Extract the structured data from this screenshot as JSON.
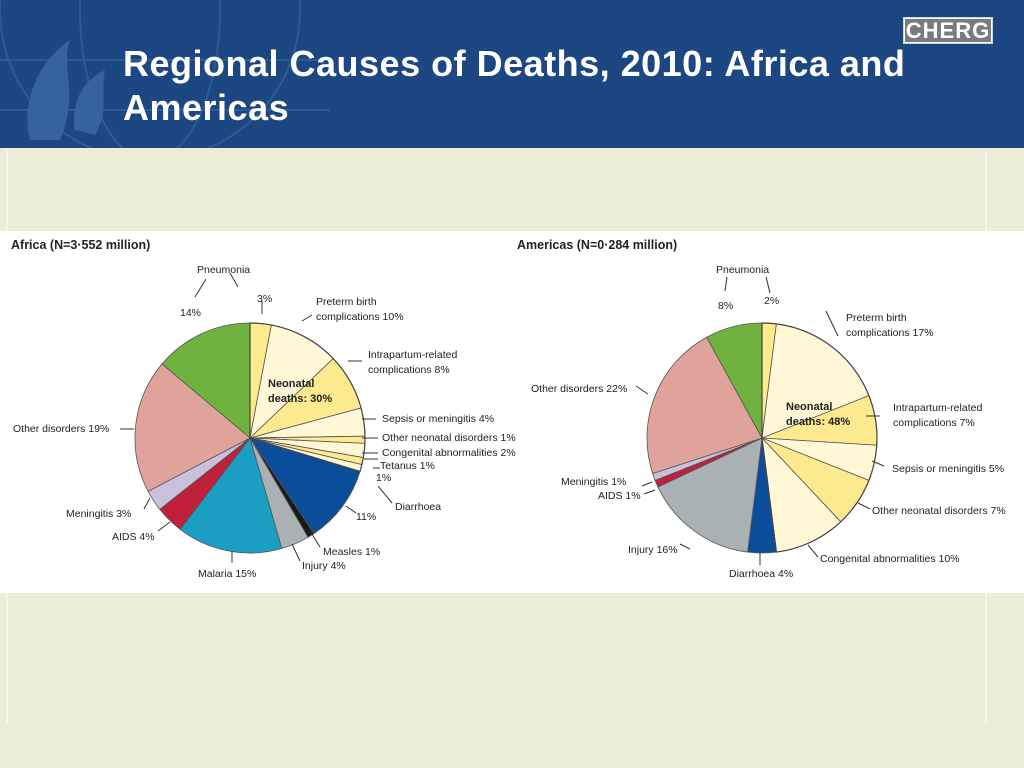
{
  "slide": {
    "title": "Regional Causes of Deaths, 2010: Africa and Americas",
    "logo_text": "CHERG"
  },
  "colors": {
    "header_bg": "#1d4783",
    "pneumonia_green": "#6fb23f",
    "neonatal_light": "#fff7d6",
    "neonatal_yellow": "#fde98e",
    "other_pink": "#e0a39c",
    "meningitis_lavender": "#cbc0dc",
    "aids_red": "#c0203a",
    "malaria_blue": "#1a9ec4",
    "injury_grey": "#aab1b5",
    "diarrhoea_blue": "#0a4d9a"
  },
  "chart_data": [
    {
      "type": "pie",
      "title": "Africa (N=3·552 million)",
      "center_label": [
        "Neonatal",
        "deaths: 30%"
      ],
      "slices": [
        {
          "label": "Pneumonia 3%",
          "value": 3,
          "color": "#fde98e",
          "group": "neonatal"
        },
        {
          "label": "Preterm birth complications 10%",
          "value": 10,
          "color": "#fff7d6",
          "group": "neonatal"
        },
        {
          "label": "Intrapartum-related complications 8%",
          "value": 8,
          "color": "#fde98e",
          "group": "neonatal"
        },
        {
          "label": "Sepsis or meningitis 4%",
          "value": 4,
          "color": "#fff7d6",
          "group": "neonatal"
        },
        {
          "label": "Other neonatal disorders 1%",
          "value": 1,
          "color": "#fde98e",
          "group": "neonatal"
        },
        {
          "label": "Congenital abnormalities 2%",
          "value": 2,
          "color": "#fff7d6",
          "group": "neonatal"
        },
        {
          "label": "Tetanus 1%",
          "value": 1,
          "color": "#fde98e",
          "group": "neonatal"
        },
        {
          "label": "1%",
          "value": 1,
          "color": "#fff7d6",
          "group": "neonatal"
        },
        {
          "label": "Diarrhoea 11%",
          "value": 11,
          "color": "#0a4d9a"
        },
        {
          "label": "Measles 1%",
          "value": 1,
          "color": "#1a1a1a"
        },
        {
          "label": "Injury 4%",
          "value": 4,
          "color": "#aab1b5"
        },
        {
          "label": "Malaria 15%",
          "value": 15,
          "color": "#1a9ec4"
        },
        {
          "label": "AIDS 4%",
          "value": 4,
          "color": "#c0203a"
        },
        {
          "label": "Meningitis 3%",
          "value": 3,
          "color": "#cbc0dc"
        },
        {
          "label": "Other disorders 19%",
          "value": 19,
          "color": "#e0a39c"
        },
        {
          "label": "Pneumonia 14%",
          "value": 14,
          "color": "#6fb23f"
        }
      ],
      "annotation_lines": [
        "Pneumonia",
        "3%",
        "14%",
        "Preterm birth",
        "complications 10%",
        "Intrapartum-related",
        "complications 8%",
        "Sepsis or meningitis 4%",
        "Other neonatal disorders 1%",
        "Congenital abnormalities 2%",
        "Tetanus 1%",
        "1%",
        "Diarrhoea",
        "11%",
        "Measles 1%",
        "Injury 4%",
        "Malaria 15%",
        "AIDS 4%",
        "Meningitis 3%",
        "Other disorders 19%"
      ]
    },
    {
      "type": "pie",
      "title": "Americas (N=0·284 million)",
      "center_label": [
        "Neonatal",
        "deaths: 48%"
      ],
      "slices": [
        {
          "label": "Pneumonia 2%",
          "value": 2,
          "color": "#fde98e",
          "group": "neonatal"
        },
        {
          "label": "Preterm birth complications 17%",
          "value": 17,
          "color": "#fff7d6",
          "group": "neonatal"
        },
        {
          "label": "Intrapartum-related complications 7%",
          "value": 7,
          "color": "#fde98e",
          "group": "neonatal"
        },
        {
          "label": "Sepsis or meningitis 5%",
          "value": 5,
          "color": "#fff7d6",
          "group": "neonatal"
        },
        {
          "label": "Other neonatal disorders 7%",
          "value": 7,
          "color": "#fde98e",
          "group": "neonatal"
        },
        {
          "label": "Congenital abnormalities 10%",
          "value": 10,
          "color": "#fff7d6",
          "group": "neonatal"
        },
        {
          "label": "Diarrhoea 4%",
          "value": 4,
          "color": "#0a4d9a"
        },
        {
          "label": "Injury 16%",
          "value": 16,
          "color": "#aab1b5"
        },
        {
          "label": "AIDS 1%",
          "value": 1,
          "color": "#c0203a"
        },
        {
          "label": "Meningitis 1%",
          "value": 1,
          "color": "#cbc0dc"
        },
        {
          "label": "Other disorders 22%",
          "value": 22,
          "color": "#e0a39c"
        },
        {
          "label": "Pneumonia 8%",
          "value": 8,
          "color": "#6fb23f"
        }
      ],
      "annotation_lines": [
        "Pneumonia",
        "8%",
        "2%",
        "Preterm birth",
        "complications 17%",
        "Intrapartum-related",
        "complications 7%",
        "Sepsis or meningitis 5%",
        "Other neonatal disorders 7%",
        "Congenital abnormalities 10%",
        "Diarrhoea 4%",
        "Injury 16%",
        "AIDS 1%",
        "Meningitis 1%",
        "Other disorders 22%"
      ]
    }
  ]
}
